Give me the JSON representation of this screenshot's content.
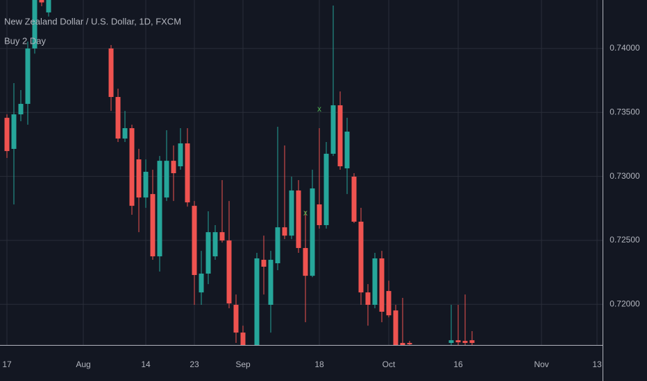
{
  "chart_data": {
    "type": "candlestick",
    "title": "New Zealand Dollar / U.S. Dollar, 1D, FXCM",
    "subtitle": "Buy 2 Day",
    "categories": [
      "17",
      null,
      null,
      null,
      null,
      null,
      null,
      null,
      null,
      null,
      null,
      "Aug",
      null,
      null,
      null,
      null,
      null,
      null,
      null,
      null,
      "14",
      null,
      null,
      null,
      null,
      null,
      null,
      "23",
      null,
      null,
      null,
      null,
      null,
      null,
      "Sep",
      null,
      null,
      null,
      null,
      null,
      null,
      null,
      null,
      null,
      null,
      "18",
      null,
      null,
      null,
      null,
      null,
      null,
      null,
      null,
      null,
      "Oct",
      null,
      null,
      null,
      null,
      null,
      null,
      null,
      null,
      null,
      "16",
      null,
      null,
      null,
      null,
      null,
      null,
      null,
      null,
      null,
      null,
      null,
      "Nov",
      null,
      null,
      null,
      null,
      null,
      null,
      null,
      "13",
      null
    ],
    "open": [
      0.73458,
      0.73215,
      0.73485,
      0.73567,
      0.74,
      0.7445,
      0.74282,
      null,
      null,
      null,
      null,
      null,
      null,
      null,
      null,
      0.74,
      0.73621,
      0.73296,
      0.73377,
      0.73133,
      0.72835,
      0.72862,
      0.72375,
      0.72835,
      0.73122,
      0.73079,
      0.73258,
      0.7277,
      0.72093,
      0.7224,
      0.72375,
      0.72564,
      0.72499,
      0.71996,
      0.71779,
      null,
      0.71682,
      0.72348,
      0.71996,
      0.72321,
      0.72602,
      0.72537,
      0.7289,
      0.7244,
      0.72223,
      0.72781,
      0.72619,
      0.73177,
      0.73556,
      0.73063,
      0.72998,
      0.72646,
      0.72093,
      0.71996,
      0.72359,
      0.72104,
      0.71952,
      0.71698,
      0.71698,
      null,
      null,
      null,
      null,
      null,
      0.71698,
      0.71719,
      0.71714,
      0.71719,
      null,
      null,
      null,
      null,
      null,
      null,
      null,
      null,
      null,
      null,
      null,
      null,
      null,
      null,
      null,
      null,
      null,
      null,
      null
    ],
    "high": [
      0.73485,
      0.73729,
      0.73675,
      0.74054,
      0.7445,
      0.745,
      0.745,
      null,
      null,
      null,
      null,
      null,
      null,
      null,
      null,
      0.74027,
      0.73686,
      0.73512,
      0.73404,
      0.73215,
      0.73133,
      0.73052,
      0.7316,
      0.73361,
      0.73242,
      0.73377,
      0.73377,
      0.72808,
      0.72418,
      0.72727,
      0.72619,
      0.72971,
      0.72808,
      0.72077,
      0.71833,
      null,
      0.72402,
      0.72537,
      0.72418,
      0.73388,
      0.73242,
      0.72998,
      0.72971,
      0.72727,
      0.73052,
      0.73377,
      0.73269,
      0.74336,
      0.73664,
      0.73458,
      0.73025,
      0.72754,
      0.72158,
      0.72402,
      0.72418,
      0.72185,
      0.71996,
      0.7205,
      0.71714,
      null,
      null,
      null,
      null,
      null,
      0.71996,
      0.71996,
      0.72077,
      0.7179,
      null,
      null,
      null,
      null,
      null,
      null,
      null,
      null,
      null,
      null,
      null,
      null,
      null,
      null,
      null,
      null,
      null,
      null,
      null
    ],
    "low": [
      0.73144,
      0.72781,
      0.73431,
      0.73404,
      0.7396,
      0.7433,
      0.7425,
      null,
      null,
      null,
      null,
      null,
      null,
      null,
      null,
      0.73512,
      0.73269,
      0.73269,
      0.727,
      0.72564,
      0.72754,
      0.72348,
      0.72256,
      0.72808,
      0.72808,
      0.73052,
      0.72764,
      0.71996,
      0.71996,
      0.72158,
      0.72348,
      0.72483,
      0.71969,
      0.71698,
      0.71617,
      null,
      0.71617,
      0.72077,
      0.71779,
      0.72267,
      0.7251,
      0.7251,
      0.72402,
      0.7186,
      0.72212,
      0.72592,
      0.72592,
      0.7316,
      0.73052,
      0.72862,
      0.72635,
      0.71996,
      0.71833,
      0.71969,
      0.7186,
      0.71898,
      0.71644,
      0.71644,
      0.71671,
      null,
      null,
      null,
      null,
      null,
      0.71671,
      0.71671,
      0.71671,
      0.71671,
      null,
      null,
      null,
      null,
      null,
      null,
      null,
      null,
      null,
      null,
      null,
      null,
      null,
      null,
      null,
      null,
      null,
      null,
      null
    ],
    "close": [
      0.73198,
      0.73485,
      0.73567,
      0.74,
      0.744,
      0.7436,
      0.7445,
      null,
      null,
      null,
      null,
      null,
      null,
      null,
      null,
      0.73621,
      0.73296,
      0.73377,
      0.7277,
      0.72835,
      0.73036,
      0.72375,
      0.73122,
      0.73122,
      0.73025,
      0.73258,
      0.72797,
      0.72229,
      0.7224,
      0.72564,
      0.72564,
      0.72499,
      0.72007,
      0.71779,
      0.71682,
      null,
      0.72359,
      0.72294,
      0.72348,
      0.72602,
      0.72537,
      0.7289,
      0.7244,
      0.72223,
      0.72906,
      0.72619,
      0.73177,
      0.73556,
      0.73079,
      0.7335,
      0.72646,
      0.72093,
      0.71996,
      0.72359,
      0.71942,
      0.71914,
      0.71682,
      0.71682,
      0.71687,
      null,
      null,
      null,
      null,
      null,
      0.71719,
      0.71703,
      0.71698,
      0.71698,
      null,
      null,
      null,
      null,
      null,
      null,
      null,
      null,
      null,
      null,
      null,
      null,
      null,
      null,
      null,
      null,
      null,
      null,
      null
    ],
    "signal_symbol": "x",
    "signal_color": "#4caf50",
    "signals": [
      null,
      null,
      null,
      null,
      null,
      null,
      null,
      null,
      null,
      null,
      null,
      null,
      null,
      null,
      null,
      null,
      null,
      null,
      null,
      null,
      null,
      null,
      null,
      null,
      null,
      null,
      null,
      null,
      null,
      null,
      null,
      null,
      null,
      null,
      null,
      null,
      null,
      null,
      null,
      null,
      null,
      null,
      null,
      0.72711,
      null,
      0.73523,
      null,
      null,
      null,
      null,
      null,
      null,
      null,
      null,
      null,
      null,
      null,
      null,
      null,
      null,
      null,
      null,
      null,
      null,
      null,
      null,
      null,
      null,
      null,
      null,
      null,
      null,
      null,
      null,
      null,
      null,
      null,
      null,
      null,
      null,
      null,
      null,
      null,
      null,
      null,
      null,
      null
    ],
    "up_color": "#26a69a",
    "down_color": "#ef5350",
    "ylim": [
      0.71682,
      0.74379
    ],
    "yticks": [
      {
        "value": 0.72,
        "label": "0.72000"
      },
      {
        "value": 0.725,
        "label": "0.72500"
      },
      {
        "value": 0.73,
        "label": "0.73000"
      },
      {
        "value": 0.735,
        "label": "0.73500"
      },
      {
        "value": 0.74,
        "label": "0.74000"
      }
    ],
    "grid": true
  }
}
